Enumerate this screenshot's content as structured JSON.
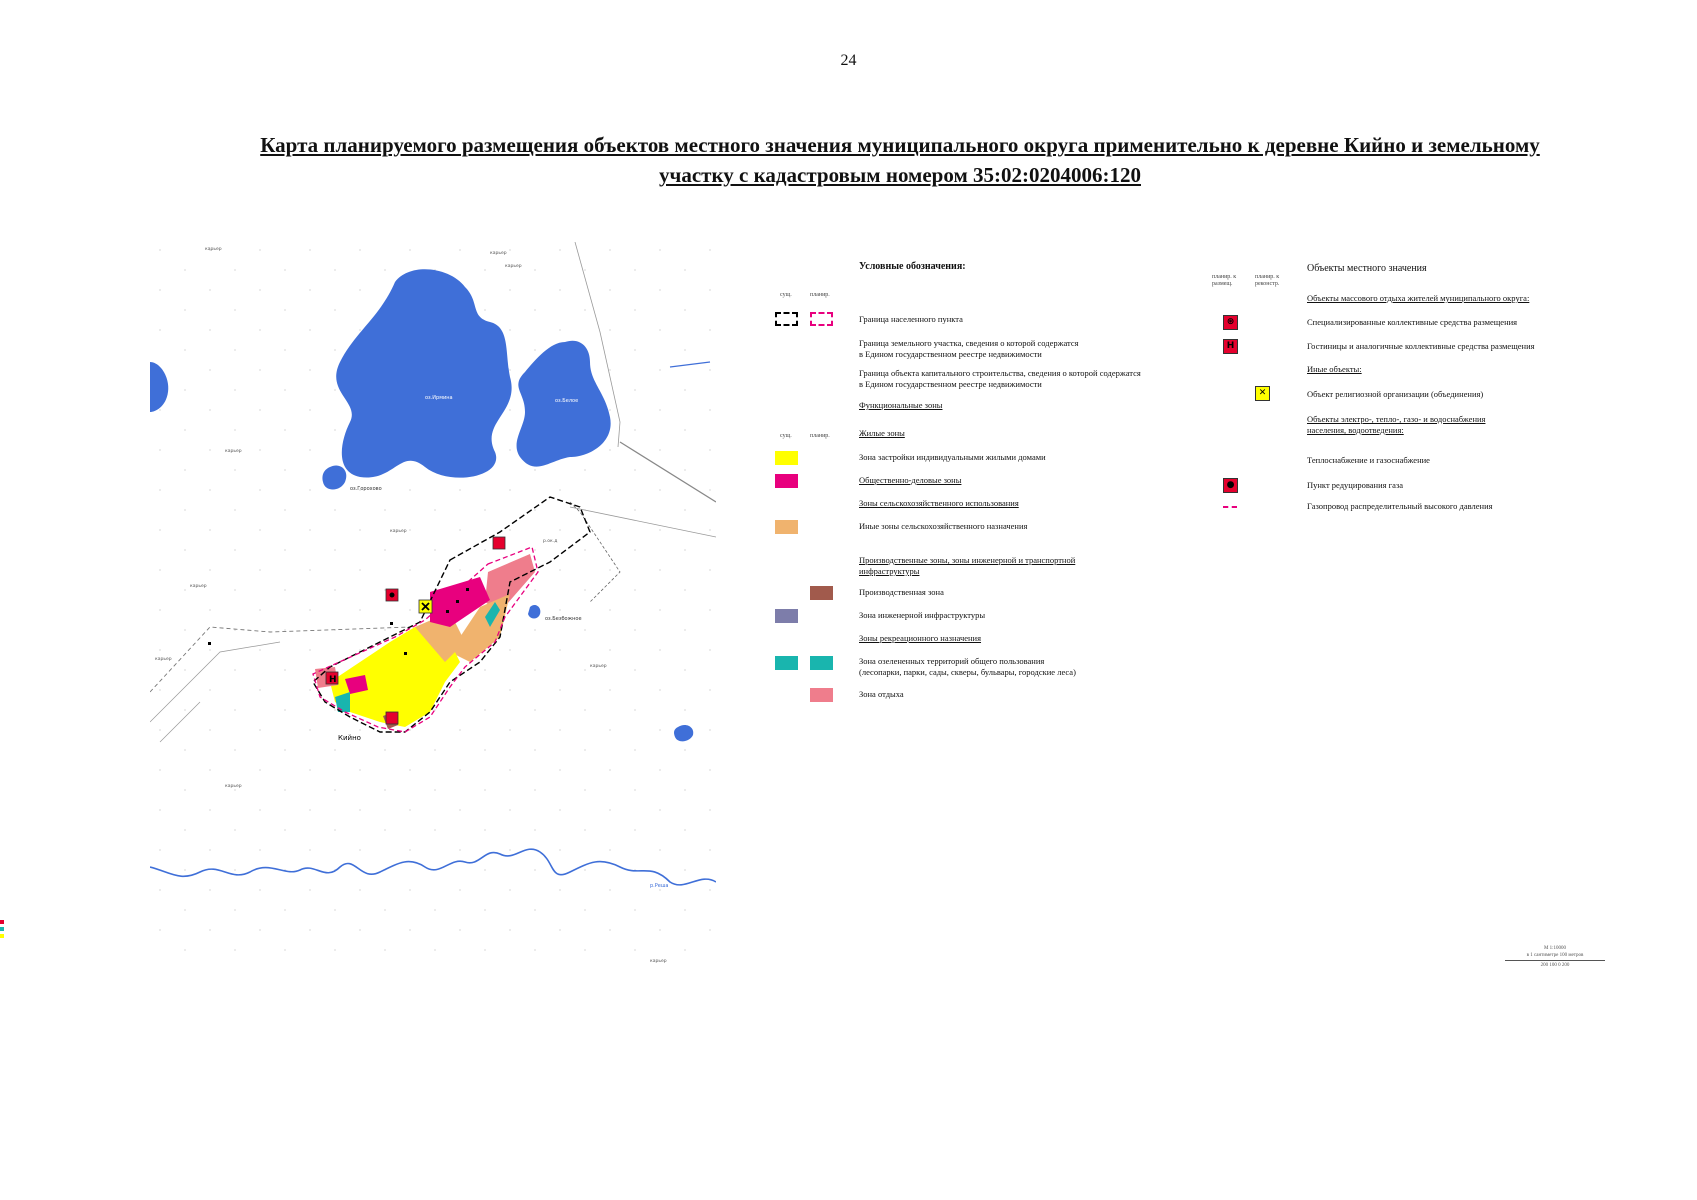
{
  "page_number": "24",
  "title_line1": "Карта планируемого размещения объектов местного значения муниципального округа применительно к деревне Кийно и земельному",
  "title_line2": "участку с кадастровым номером 35:02:0204006:120",
  "map": {
    "lake_1": "оз.Ирмина",
    "lake_2": "оз.Белое",
    "lake_3": "оз.Горохово",
    "lake_4": "оз.Безбожное",
    "village": "Кийно",
    "river": "р.Реша",
    "quarry": "карьер",
    "trail": "р.ок.д"
  },
  "legend": {
    "heading": "Условные обозначения:",
    "col_existing": "сущ.",
    "col_planned": "планир.",
    "settlement_border": "Граница населенного пункта",
    "land_plot_border_1": "Граница земельного участка, сведения о которой содержатся",
    "land_plot_border_2": "в Едином государственном реестре недвижимости",
    "capital_object_border_1": "Граница объекта капитального строительства, сведения о которой содержатся",
    "capital_object_border_2": "в Едином государственном реестре недвижимости",
    "functional_zones": "Функциональные зоны",
    "residential_zones": "Жилые зоны",
    "individual_housing": "Зона застройки индивидуальными жилыми домами",
    "public_business": "Общественно-деловые зоны",
    "agricultural_zones": "Зоны сельскохозяйственного использования",
    "other_agricultural": "Иные зоны сельскохозяйственного назначения",
    "production_zones_1": "Производственные зоны, зоны инженерной и транспортной",
    "production_zones_2": "инфраструктуры",
    "production_zone": "Производственная зона",
    "engineering_zone": "Зона инженерной инфраструктуры",
    "recreational_zones": "Зоны рекреационного назначения",
    "green_areas_1": "Зона озелененных территорий общего пользования",
    "green_areas_2": "(лесопарки, парки, сады, скверы, бульвары, городские леса)",
    "rest_zone": "Зона отдыха",
    "col_planned_placement_1": "планир. к",
    "col_planned_placement_2": "размещ.",
    "col_planned_reconstruction_1": "планир. к",
    "col_planned_reconstruction_2": "реконстр.",
    "local_objects": "Объекты местного значения",
    "mass_recreation": "Объекты массового отдыха жителей муниципального округа:",
    "specialized_accommodation": "Специализированные коллективные средства размещения",
    "hotels": "Гостиницы и аналогичные коллективные средства размещения",
    "other_objects": "Иные объекты:",
    "religious": "Объект религиозной организации (объединения)",
    "utilities_1": "Объекты электро-, тепло-, газо- и водоснабжения",
    "utilities_2": "населения, водоотведения:",
    "heat_gas": "Теплоснабжение и газоснабжение",
    "gas_reduction": "Пункт редуцирования газа",
    "gas_pipeline": "Газопровод распределительный высокого давления"
  },
  "scale": {
    "line1": "М 1:10000",
    "line2": "в 1 сантиметре 100 метров",
    "ticks": "200    100      0              200"
  },
  "colors": {
    "water": "#3f6fd8",
    "housing": "#ffff00",
    "public_business": "#e8007e",
    "other_agricultural": "#f0b36e",
    "production": "#a15a4c",
    "engineering": "#7d7daa",
    "green": "#19b5ae",
    "rest": "#ef7d8c",
    "border_planned": "#e8007e"
  }
}
